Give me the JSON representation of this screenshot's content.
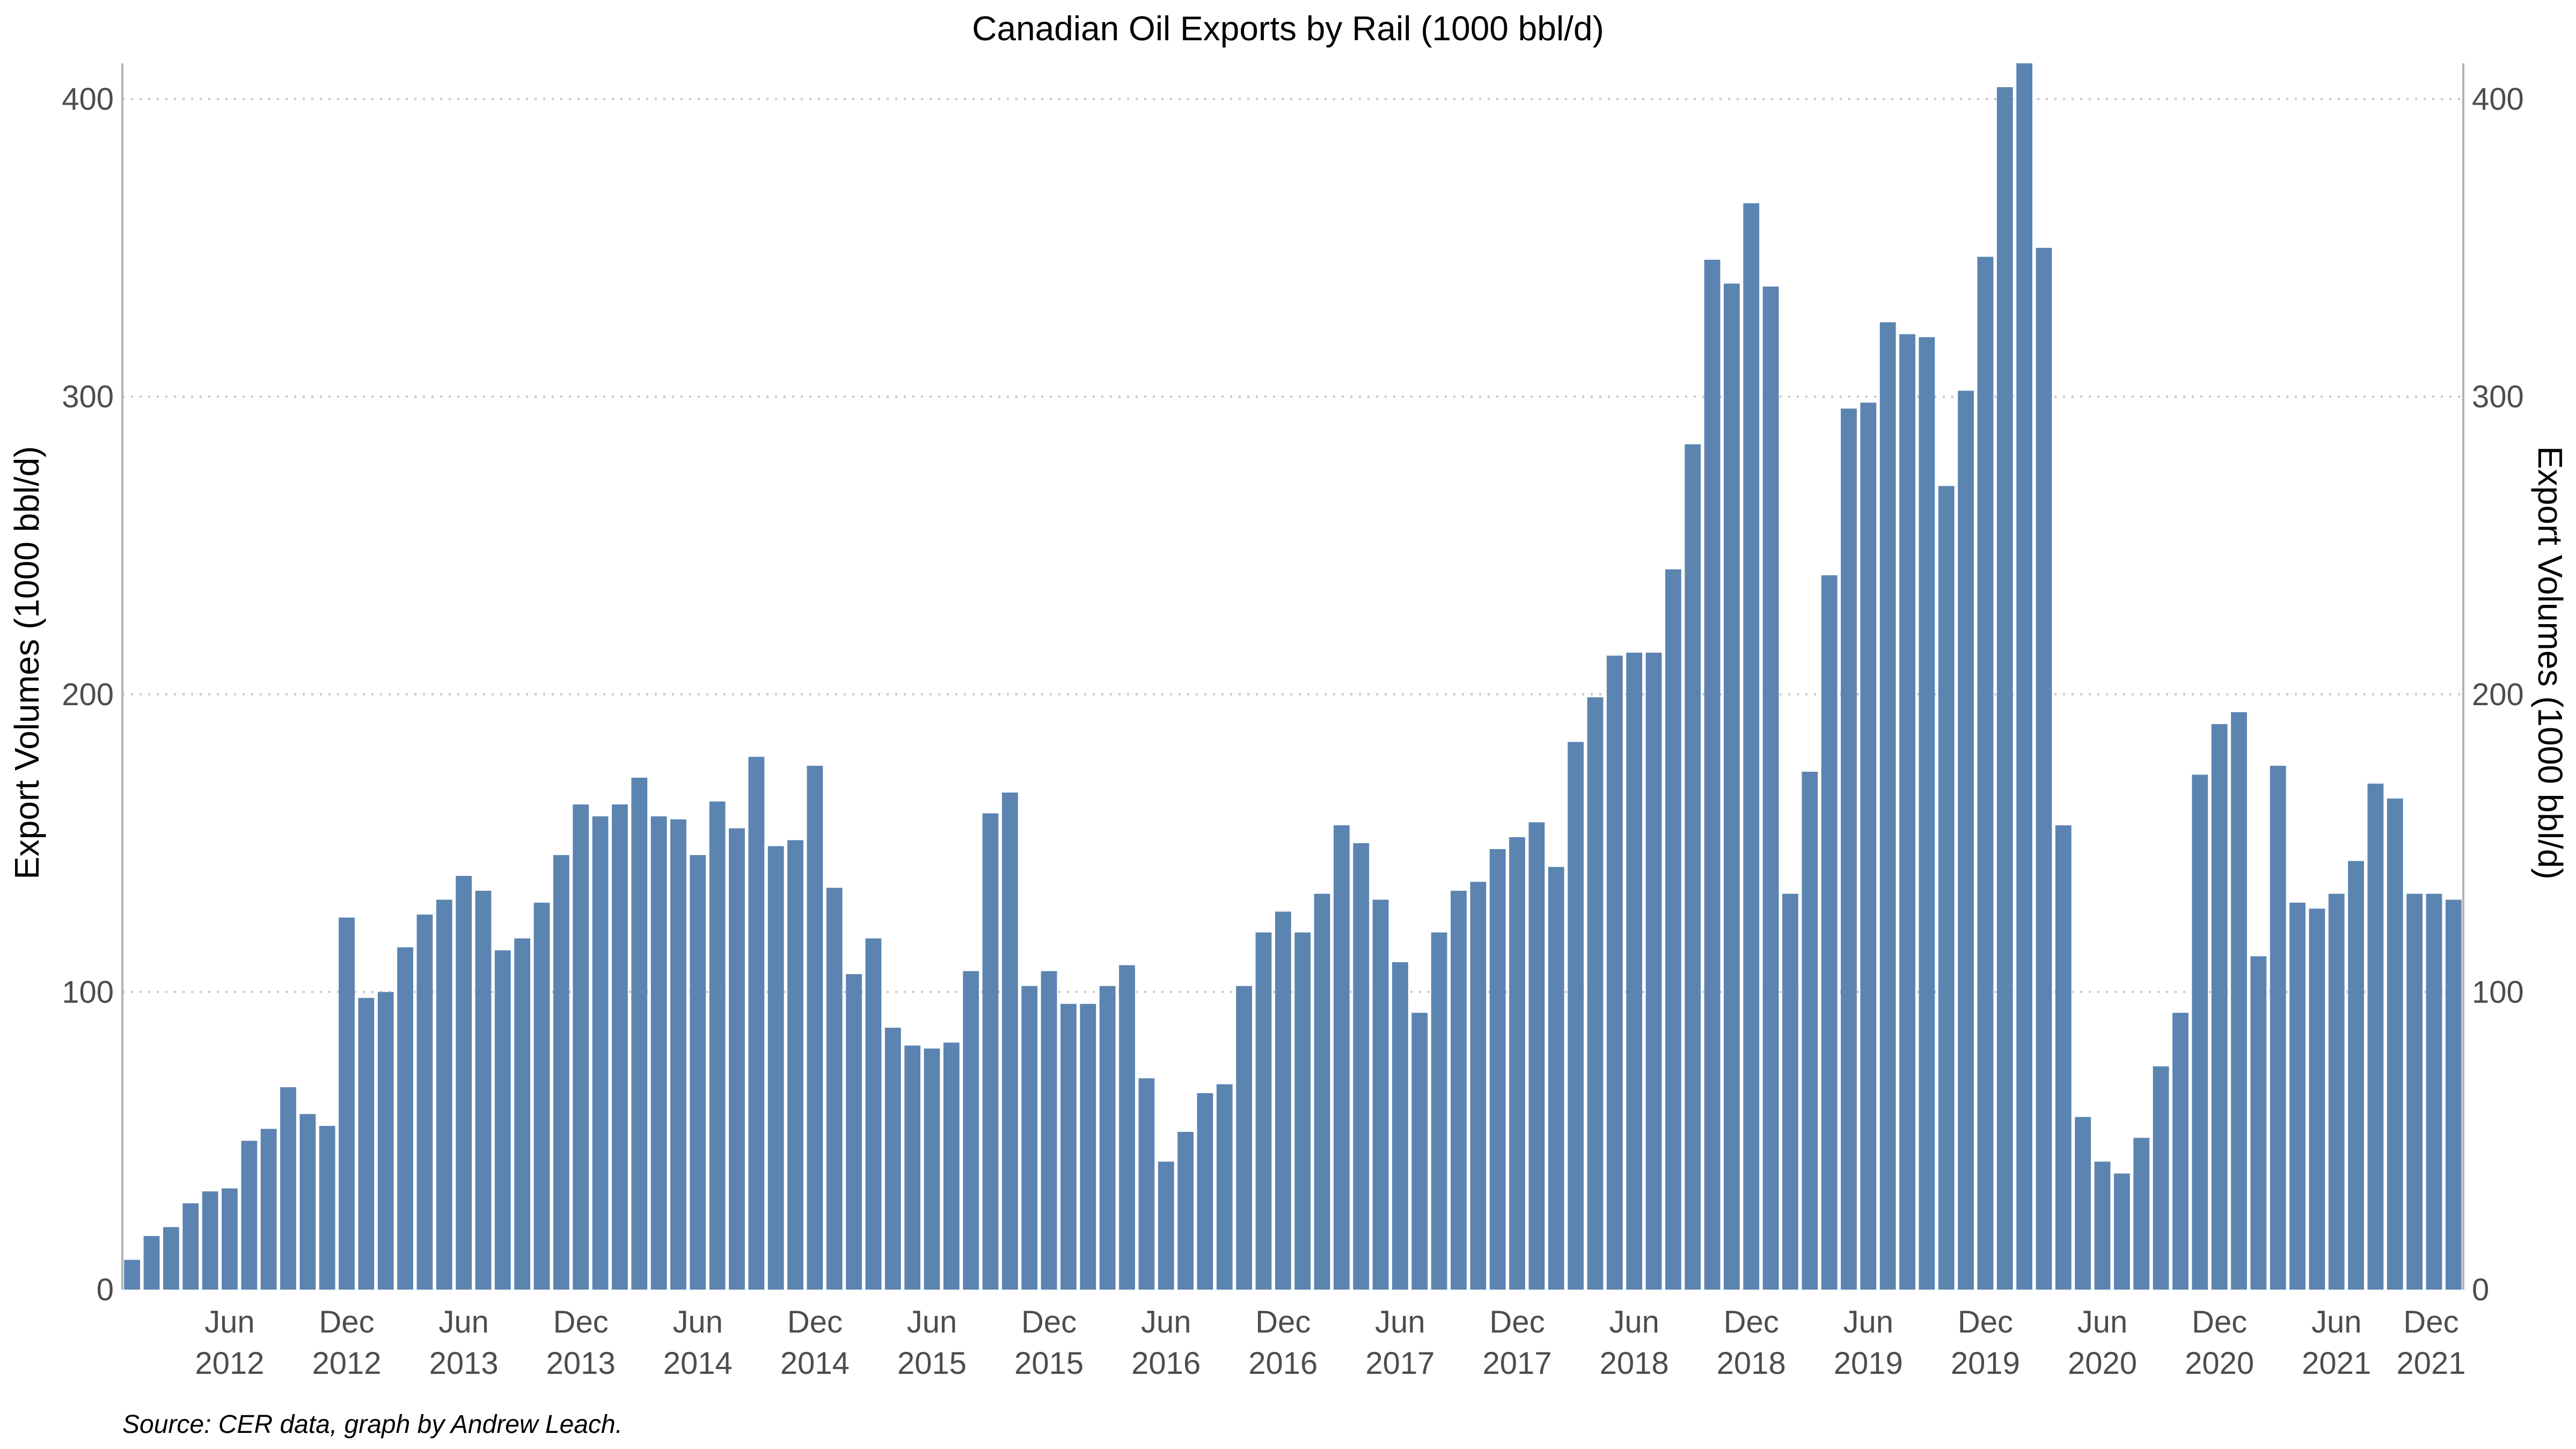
{
  "chart_data": {
    "type": "bar",
    "title": "Canadian Oil Exports by Rail (1000 bbl/d)",
    "ylabel": "Export Volumes (1000 bbl/d)",
    "ylabel_right": "Export Volumes (1000 bbl/d)",
    "xlabel": "",
    "ylim": [
      0,
      412
    ],
    "yticks": [
      0,
      100,
      200,
      300,
      400
    ],
    "grid": "horizontal dotted",
    "bar_color": "#5b84b1",
    "source": "Source: CER data, graph by Andrew Leach.",
    "xrange_months": [
      "2012-01",
      "2021-12"
    ],
    "xtick_labels": [
      {
        "index": 5,
        "month": "Jun",
        "year": "2012"
      },
      {
        "index": 11,
        "month": "Dec",
        "year": "2012"
      },
      {
        "index": 17,
        "month": "Jun",
        "year": "2013"
      },
      {
        "index": 23,
        "month": "Dec",
        "year": "2013"
      },
      {
        "index": 29,
        "month": "Jun",
        "year": "2014"
      },
      {
        "index": 35,
        "month": "Dec",
        "year": "2014"
      },
      {
        "index": 41,
        "month": "Jun",
        "year": "2015"
      },
      {
        "index": 47,
        "month": "Dec",
        "year": "2015"
      },
      {
        "index": 53,
        "month": "Jun",
        "year": "2016"
      },
      {
        "index": 59,
        "month": "Dec",
        "year": "2016"
      },
      {
        "index": 65,
        "month": "Jun",
        "year": "2017"
      },
      {
        "index": 71,
        "month": "Dec",
        "year": "2017"
      },
      {
        "index": 77,
        "month": "Jun",
        "year": "2018"
      },
      {
        "index": 83,
        "month": "Dec",
        "year": "2018"
      },
      {
        "index": 89,
        "month": "Jun",
        "year": "2019"
      },
      {
        "index": 95,
        "month": "Dec",
        "year": "2019"
      },
      {
        "index": 101,
        "month": "Jun",
        "year": "2020"
      },
      {
        "index": 107,
        "month": "Dec",
        "year": "2020"
      },
      {
        "index": 113,
        "month": "Jun",
        "year": "2021"
      },
      {
        "index": 119,
        "month": "Dec",
        "year": "2021"
      }
    ],
    "values": [
      10,
      18,
      21,
      29,
      33,
      34,
      50,
      54,
      68,
      59,
      55,
      125,
      98,
      100,
      115,
      126,
      131,
      139,
      134,
      114,
      118,
      130,
      146,
      163,
      159,
      163,
      172,
      159,
      158,
      146,
      164,
      155,
      179,
      149,
      151,
      176,
      135,
      106,
      118,
      88,
      82,
      81,
      83,
      107,
      160,
      167,
      102,
      107,
      96,
      96,
      102,
      109,
      71,
      43,
      53,
      66,
      69,
      102,
      120,
      127,
      120,
      133,
      156,
      150,
      131,
      110,
      93,
      120,
      134,
      137,
      148,
      152,
      157,
      142,
      184,
      199,
      213,
      214,
      214,
      242,
      284,
      346,
      338,
      365,
      337,
      133,
      174,
      240,
      296,
      298,
      325,
      321,
      320,
      270,
      302,
      347,
      404,
      412,
      350,
      156,
      58,
      43,
      39,
      51,
      75,
      93,
      173,
      190,
      194,
      112,
      176,
      130,
      128,
      133,
      144,
      170,
      165,
      133,
      133,
      131
    ]
  }
}
